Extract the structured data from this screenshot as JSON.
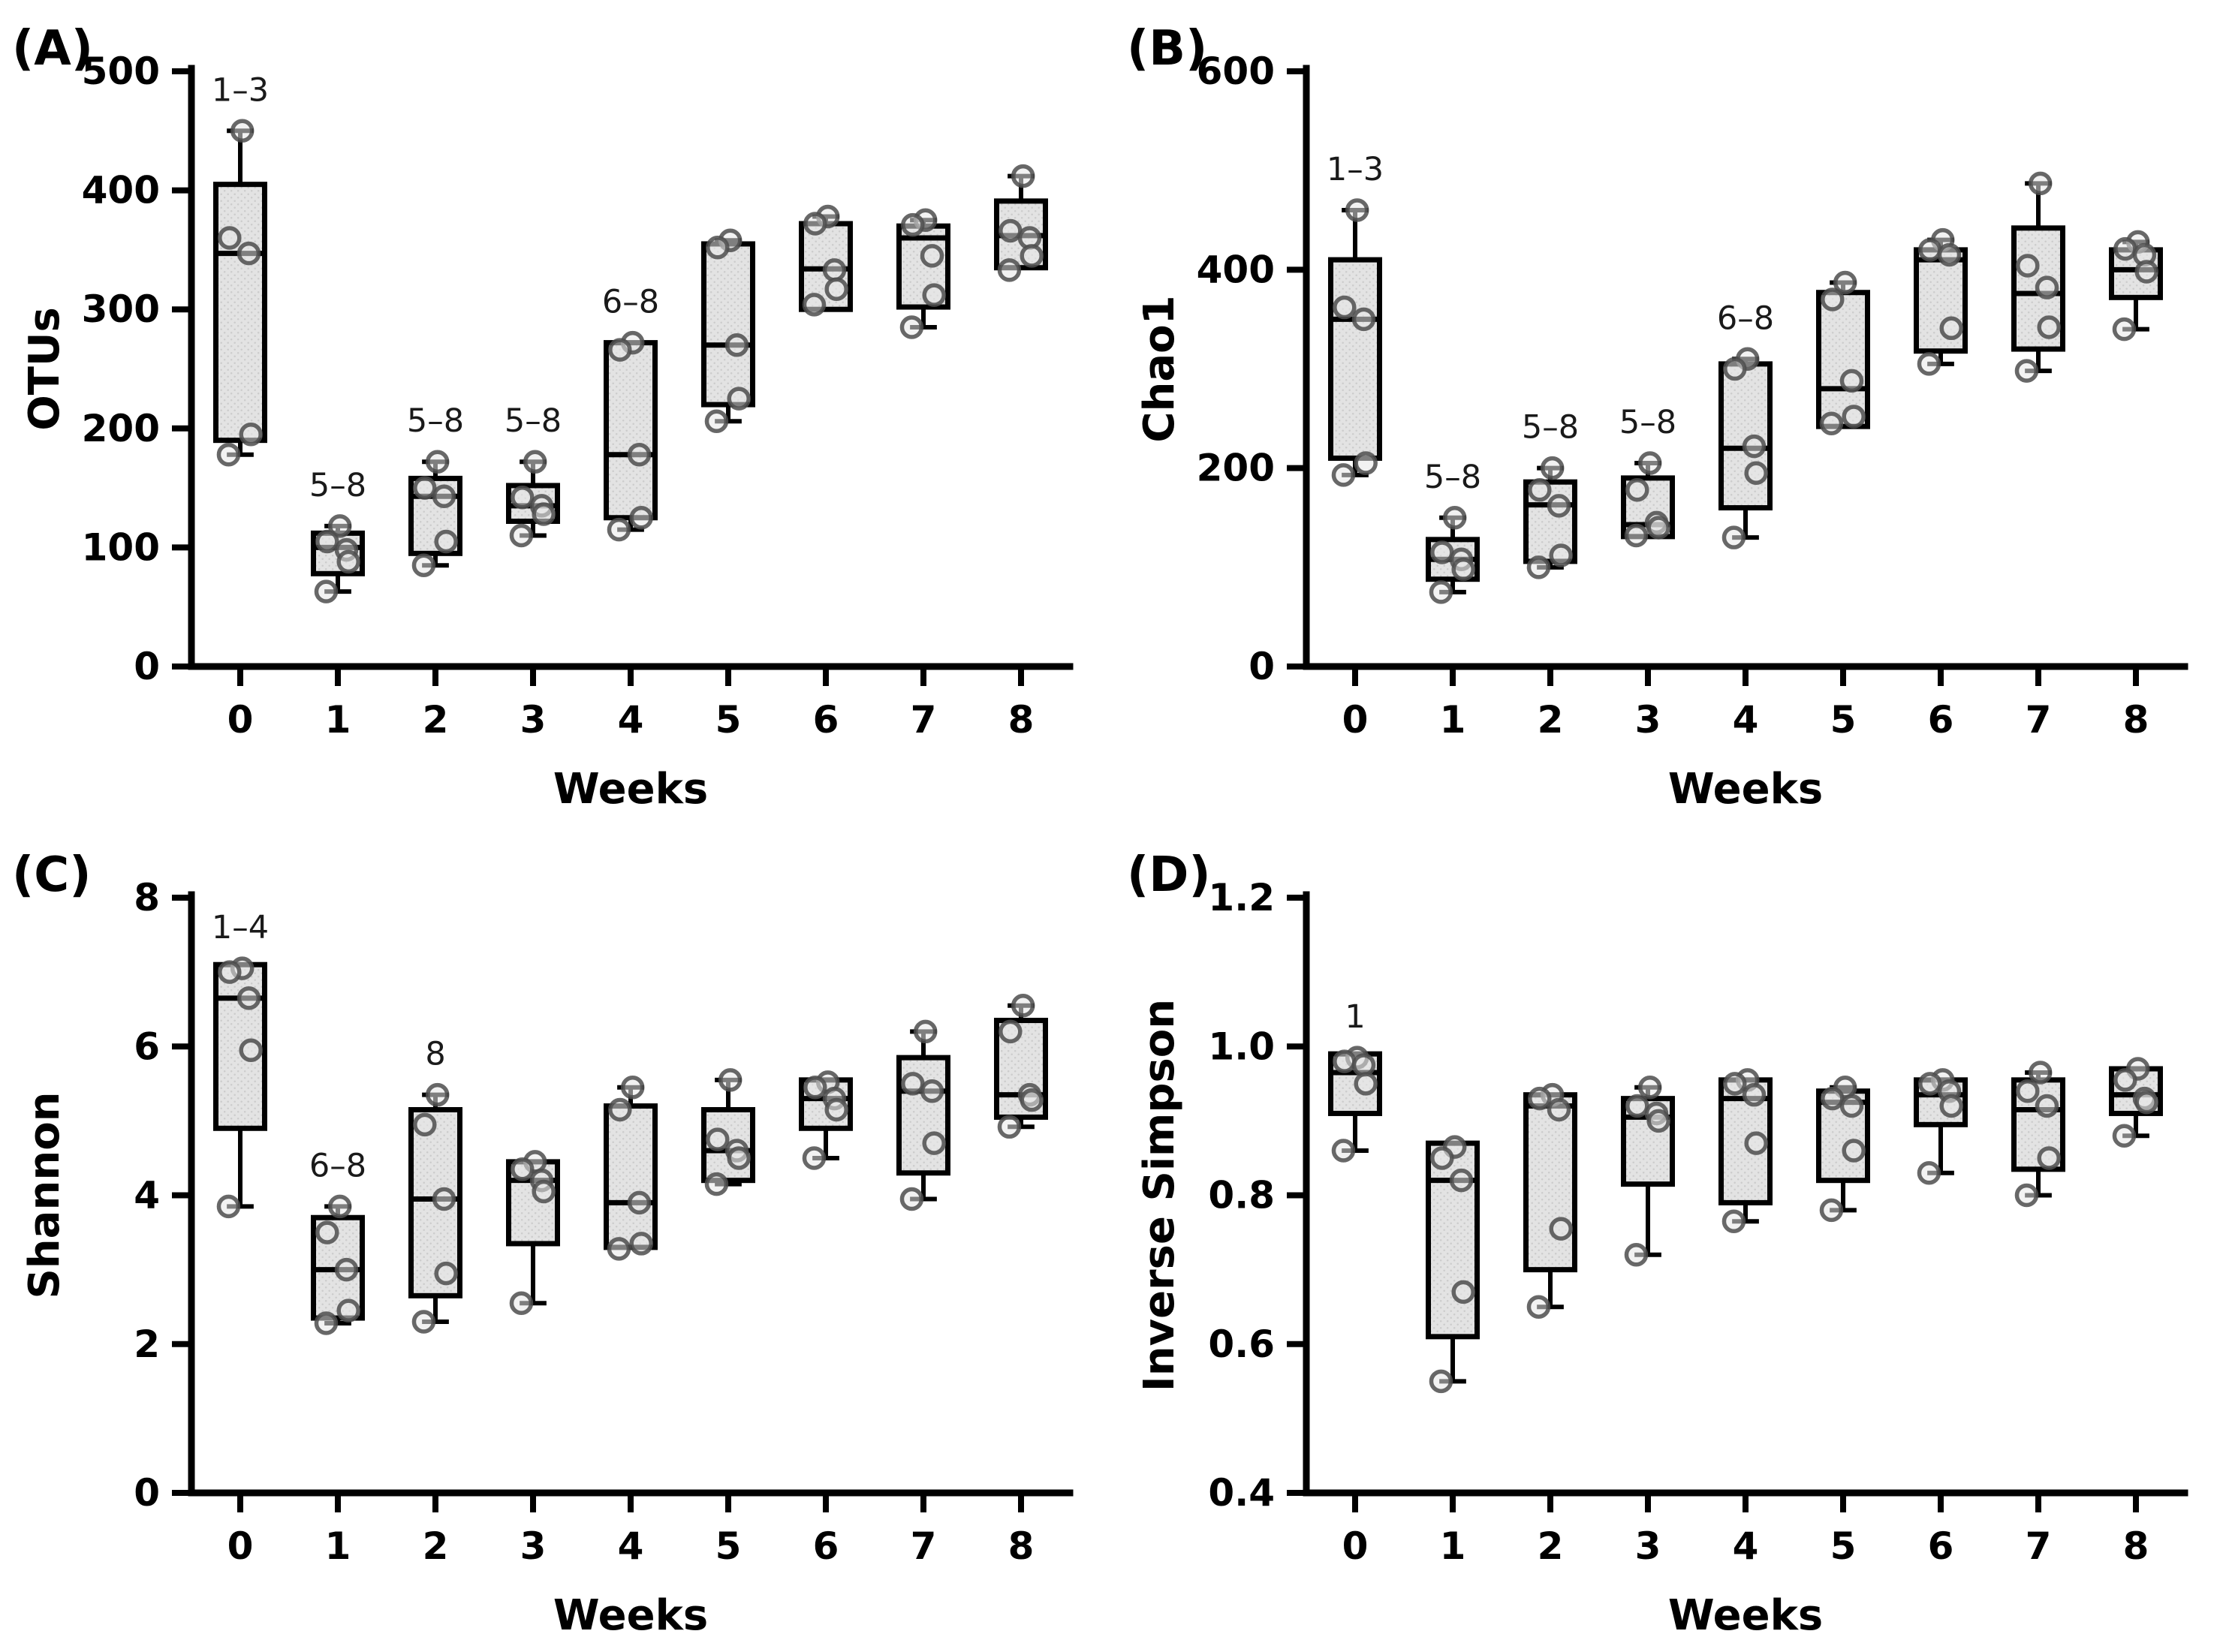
{
  "figure": {
    "colors": {
      "background": "#ffffff",
      "axis": "#000000",
      "box_stroke": "#000000",
      "box_fill_base": "#e3e3e3",
      "box_fill_dot": "#cccccc",
      "point_stroke": "#4d4d4d",
      "annotation": "#1a1a1a"
    }
  },
  "chart_data": [
    {
      "type": "box",
      "panel_label": "(A)",
      "ylabel": "OTUs",
      "xlabel": "Weeks",
      "ylim": [
        0,
        500
      ],
      "yticks": [
        0,
        100,
        200,
        300,
        400,
        500
      ],
      "ytick_labels": [
        "0",
        "100",
        "200",
        "300",
        "400",
        "500"
      ],
      "categories": [
        "0",
        "1",
        "2",
        "3",
        "4",
        "5",
        "6",
        "7",
        "8"
      ],
      "grid": false,
      "boxes": [
        {
          "week": "0",
          "annotation": "1–3",
          "q1": 190,
          "median": 347,
          "q3": 405,
          "points": [
            450,
            360,
            347,
            195,
            178
          ]
        },
        {
          "week": "1",
          "annotation": "5–8",
          "q1": 78,
          "median": 100,
          "q3": 112,
          "points": [
            118,
            105,
            98,
            88,
            63
          ]
        },
        {
          "week": "2",
          "annotation": "5–8",
          "q1": 95,
          "median": 143,
          "q3": 158,
          "points": [
            172,
            150,
            143,
            105,
            85
          ]
        },
        {
          "week": "3",
          "annotation": "5–8",
          "q1": 122,
          "median": 135,
          "q3": 152,
          "points": [
            172,
            142,
            135,
            128,
            110
          ]
        },
        {
          "week": "4",
          "annotation": "6–8",
          "q1": 125,
          "median": 178,
          "q3": 272,
          "points": [
            272,
            266,
            178,
            125,
            115
          ]
        },
        {
          "week": "5",
          "annotation": "",
          "q1": 220,
          "median": 270,
          "q3": 355,
          "points": [
            358,
            352,
            270,
            225,
            206
          ]
        },
        {
          "week": "6",
          "annotation": "",
          "q1": 300,
          "median": 334,
          "q3": 372,
          "points": [
            378,
            372,
            333,
            317,
            304
          ]
        },
        {
          "week": "7",
          "annotation": "",
          "q1": 302,
          "median": 360,
          "q3": 370,
          "points": [
            375,
            371,
            345,
            312,
            285
          ]
        },
        {
          "week": "8",
          "annotation": "",
          "q1": 335,
          "median": 362,
          "q3": 391,
          "points": [
            412,
            366,
            360,
            345,
            333
          ]
        }
      ]
    },
    {
      "type": "box",
      "panel_label": "(B)",
      "ylabel": "Chao1",
      "xlabel": "Weeks",
      "ylim": [
        0,
        600
      ],
      "yticks": [
        0,
        200,
        400,
        600
      ],
      "ytick_labels": [
        "0",
        "200",
        "400",
        "600"
      ],
      "categories": [
        "0",
        "1",
        "2",
        "3",
        "4",
        "5",
        "6",
        "7",
        "8"
      ],
      "grid": false,
      "boxes": [
        {
          "week": "0",
          "annotation": "1–3",
          "q1": 210,
          "median": 350,
          "q3": 410,
          "points": [
            460,
            362,
            350,
            205,
            193
          ]
        },
        {
          "week": "1",
          "annotation": "5–8",
          "q1": 88,
          "median": 108,
          "q3": 128,
          "points": [
            150,
            115,
            108,
            98,
            75
          ]
        },
        {
          "week": "2",
          "annotation": "5–8",
          "q1": 106,
          "median": 163,
          "q3": 186,
          "points": [
            200,
            178,
            162,
            112,
            100
          ]
        },
        {
          "week": "3",
          "annotation": "5–8",
          "q1": 131,
          "median": 143,
          "q3": 190,
          "points": [
            205,
            178,
            145,
            140,
            132
          ]
        },
        {
          "week": "4",
          "annotation": "6–8",
          "q1": 160,
          "median": 220,
          "q3": 305,
          "points": [
            310,
            300,
            222,
            195,
            130
          ]
        },
        {
          "week": "5",
          "annotation": "",
          "q1": 242,
          "median": 280,
          "q3": 377,
          "points": [
            387,
            370,
            288,
            252,
            245
          ]
        },
        {
          "week": "6",
          "annotation": "",
          "q1": 318,
          "median": 410,
          "q3": 420,
          "points": [
            430,
            420,
            415,
            341,
            305
          ]
        },
        {
          "week": "7",
          "annotation": "",
          "q1": 320,
          "median": 376,
          "q3": 442,
          "points": [
            487,
            404,
            382,
            342,
            298
          ]
        },
        {
          "week": "8",
          "annotation": "",
          "q1": 372,
          "median": 400,
          "q3": 420,
          "points": [
            428,
            421,
            415,
            398,
            340
          ]
        }
      ]
    },
    {
      "type": "box",
      "panel_label": "(C)",
      "ylabel": "Shannon",
      "xlabel": "Weeks",
      "ylim": [
        0,
        8
      ],
      "yticks": [
        0,
        2,
        4,
        6,
        8
      ],
      "ytick_labels": [
        "0",
        "2",
        "4",
        "6",
        "8"
      ],
      "categories": [
        "0",
        "1",
        "2",
        "3",
        "4",
        "5",
        "6",
        "7",
        "8"
      ],
      "grid": false,
      "boxes": [
        {
          "week": "0",
          "annotation": "1–4",
          "q1": 4.9,
          "median": 6.65,
          "q3": 7.1,
          "points": [
            7.05,
            7.0,
            6.65,
            5.95,
            3.85
          ]
        },
        {
          "week": "1",
          "annotation": "6–8",
          "q1": 2.35,
          "median": 3.0,
          "q3": 3.7,
          "points": [
            3.85,
            3.5,
            3.0,
            2.45,
            2.28
          ]
        },
        {
          "week": "2",
          "annotation": "8",
          "q1": 2.65,
          "median": 3.95,
          "q3": 5.15,
          "points": [
            5.35,
            4.95,
            3.95,
            2.95,
            2.3
          ]
        },
        {
          "week": "3",
          "annotation": "",
          "q1": 3.35,
          "median": 4.2,
          "q3": 4.45,
          "points": [
            4.45,
            4.35,
            4.2,
            4.05,
            2.55
          ]
        },
        {
          "week": "4",
          "annotation": "",
          "q1": 3.3,
          "median": 3.9,
          "q3": 5.2,
          "points": [
            5.45,
            5.15,
            3.9,
            3.35,
            3.28
          ]
        },
        {
          "week": "5",
          "annotation": "",
          "q1": 4.2,
          "median": 4.6,
          "q3": 5.15,
          "points": [
            5.55,
            4.75,
            4.6,
            4.5,
            4.15
          ]
        },
        {
          "week": "6",
          "annotation": "",
          "q1": 4.9,
          "median": 5.3,
          "q3": 5.55,
          "points": [
            5.52,
            5.45,
            5.3,
            5.15,
            4.5
          ]
        },
        {
          "week": "7",
          "annotation": "",
          "q1": 4.3,
          "median": 5.4,
          "q3": 5.85,
          "points": [
            6.2,
            5.5,
            5.4,
            4.7,
            3.95
          ]
        },
        {
          "week": "8",
          "annotation": "",
          "q1": 5.05,
          "median": 5.35,
          "q3": 6.35,
          "points": [
            6.55,
            6.2,
            5.35,
            5.28,
            4.92
          ]
        }
      ]
    },
    {
      "type": "box",
      "panel_label": "(D)",
      "ylabel": "Inverse Simpson",
      "xlabel": "Weeks",
      "ylim": [
        0.4,
        1.2
      ],
      "yticks": [
        0.4,
        0.6,
        0.8,
        1.0,
        1.2
      ],
      "ytick_labels": [
        "0.4",
        "0.6",
        "0.8",
        "1.0",
        "1.2"
      ],
      "categories": [
        "0",
        "1",
        "2",
        "3",
        "4",
        "5",
        "6",
        "7",
        "8"
      ],
      "grid": false,
      "boxes": [
        {
          "week": "0",
          "annotation": "1",
          "q1": 0.91,
          "median": 0.965,
          "q3": 0.99,
          "points": [
            0.985,
            0.98,
            0.975,
            0.95,
            0.86
          ]
        },
        {
          "week": "1",
          "annotation": "",
          "q1": 0.61,
          "median": 0.82,
          "q3": 0.87,
          "points": [
            0.865,
            0.85,
            0.82,
            0.67,
            0.55
          ]
        },
        {
          "week": "2",
          "annotation": "",
          "q1": 0.7,
          "median": 0.92,
          "q3": 0.935,
          "points": [
            0.935,
            0.93,
            0.915,
            0.755,
            0.65
          ]
        },
        {
          "week": "3",
          "annotation": "",
          "q1": 0.815,
          "median": 0.905,
          "q3": 0.93,
          "points": [
            0.945,
            0.92,
            0.91,
            0.9,
            0.72
          ]
        },
        {
          "week": "4",
          "annotation": "",
          "q1": 0.79,
          "median": 0.93,
          "q3": 0.955,
          "points": [
            0.955,
            0.95,
            0.935,
            0.87,
            0.765
          ]
        },
        {
          "week": "5",
          "annotation": "",
          "q1": 0.82,
          "median": 0.925,
          "q3": 0.94,
          "points": [
            0.945,
            0.93,
            0.92,
            0.86,
            0.78
          ]
        },
        {
          "week": "6",
          "annotation": "",
          "q1": 0.895,
          "median": 0.935,
          "q3": 0.955,
          "points": [
            0.955,
            0.95,
            0.94,
            0.92,
            0.83
          ]
        },
        {
          "week": "7",
          "annotation": "",
          "q1": 0.835,
          "median": 0.915,
          "q3": 0.955,
          "points": [
            0.965,
            0.94,
            0.92,
            0.85,
            0.8
          ]
        },
        {
          "week": "8",
          "annotation": "",
          "q1": 0.91,
          "median": 0.935,
          "q3": 0.97,
          "points": [
            0.97,
            0.955,
            0.93,
            0.925,
            0.88
          ]
        }
      ]
    }
  ]
}
